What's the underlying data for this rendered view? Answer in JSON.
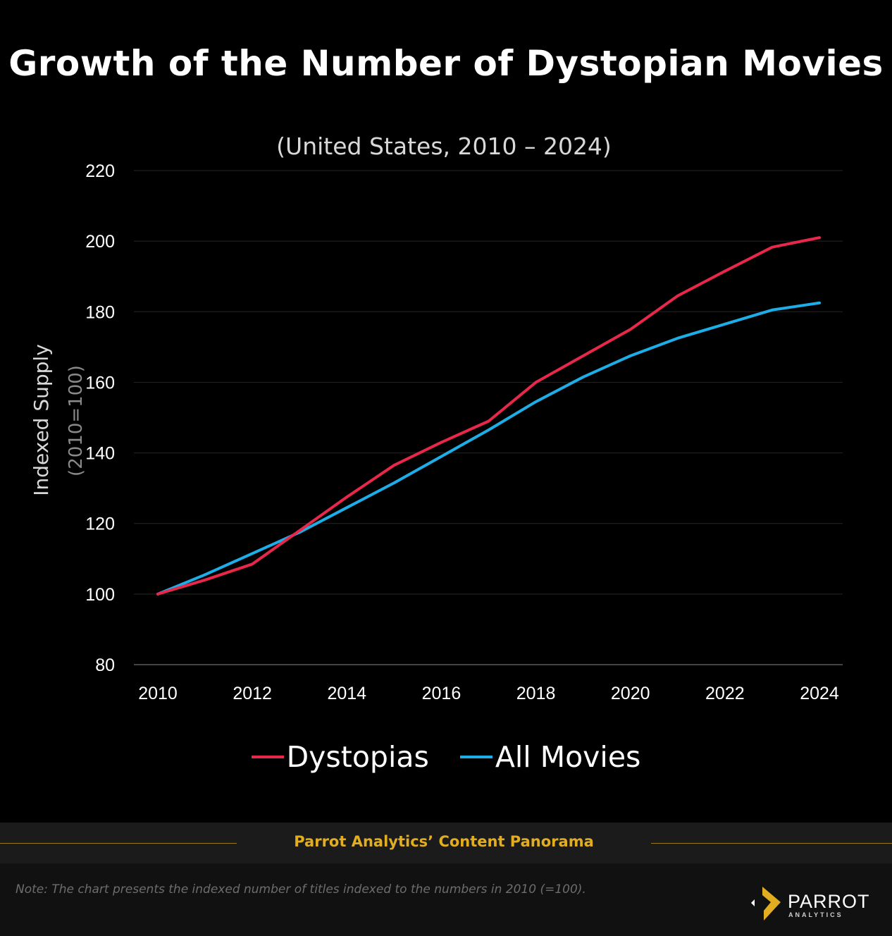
{
  "chart_data": {
    "type": "line",
    "title": "Growth of the Number of Dystopian Movies",
    "subtitle": "(United States, 2010 – 2024)",
    "ylabel": "Indexed Supply",
    "ylabel_sub": "(2010=100)",
    "xlabel": "",
    "ylim": [
      80,
      220
    ],
    "yticks": [
      80,
      100,
      120,
      140,
      160,
      180,
      200,
      220
    ],
    "xlim": [
      2010,
      2024
    ],
    "xticks": [
      2010,
      2012,
      2014,
      2016,
      2018,
      2020,
      2022,
      2024
    ],
    "x": [
      2010,
      2011,
      2012,
      2013,
      2014,
      2015,
      2016,
      2017,
      2018,
      2019,
      2020,
      2021,
      2022,
      2023,
      2024
    ],
    "grid": true,
    "legend_position": "bottom",
    "series": [
      {
        "name": "Dystopias",
        "color": "#e8284a",
        "values": [
          100,
          104,
          108.5,
          118,
          127.5,
          136.5,
          143,
          149,
          160,
          167.5,
          175,
          184.5,
          191.5,
          198.3,
          201
        ]
      },
      {
        "name": "All Movies",
        "color": "#1daee8",
        "values": [
          100,
          105.5,
          111.5,
          117.5,
          124.5,
          131.5,
          139,
          146.5,
          154.5,
          161.5,
          167.5,
          172.5,
          176.5,
          180.5,
          182.5
        ]
      }
    ]
  },
  "footer": {
    "source": "Parrot Analytics’ Content Panorama",
    "note": "Note: The chart presents the indexed number of titles indexed to the numbers in 2010 (=100)."
  },
  "logo": {
    "name": "PARROT",
    "sub": "ANALYTICS",
    "accent_color": "#e2ad21"
  }
}
